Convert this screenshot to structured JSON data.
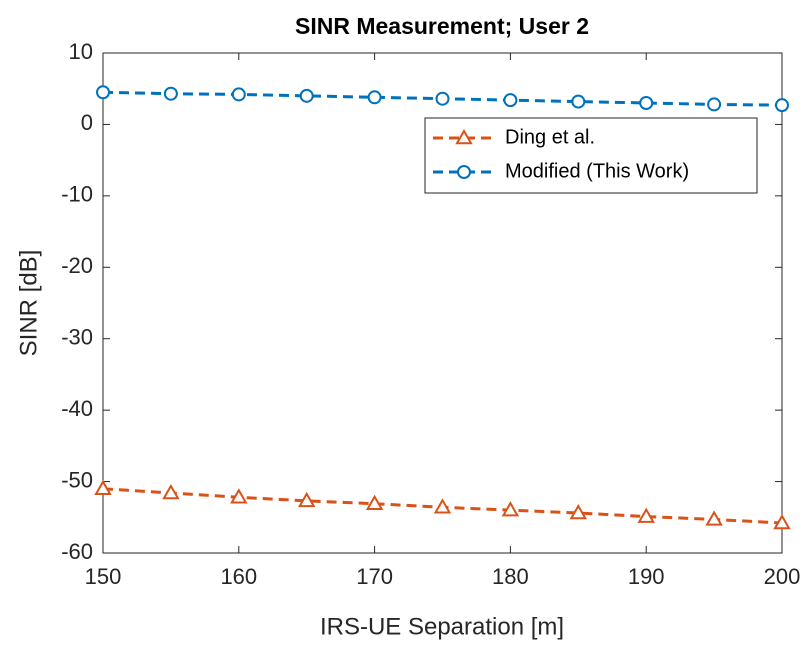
{
  "chart_data": {
    "type": "line",
    "title": "SINR Measurement; User 2",
    "xlabel": "IRS-UE Separation [m]",
    "ylabel": "SINR [dB]",
    "x": [
      150,
      155,
      160,
      165,
      170,
      175,
      180,
      185,
      190,
      195,
      200
    ],
    "series": [
      {
        "name": "Ding et al.",
        "color": "#d95319",
        "marker": "triangle",
        "values": [
          -51.0,
          -51.6,
          -52.2,
          -52.7,
          -53.1,
          -53.6,
          -54.0,
          -54.4,
          -54.9,
          -55.3,
          -55.8
        ]
      },
      {
        "name": "Modified (This Work)",
        "color": "#0072bd",
        "marker": "circle",
        "values": [
          4.5,
          4.3,
          4.2,
          4.0,
          3.8,
          3.6,
          3.4,
          3.2,
          3.0,
          2.8,
          2.7
        ]
      }
    ],
    "xlim": [
      150,
      200
    ],
    "xticks": [
      150,
      160,
      170,
      180,
      190,
      200
    ],
    "ylim": [
      -60,
      10
    ],
    "yticks": [
      -60,
      -50,
      -40,
      -30,
      -20,
      -10,
      0,
      10
    ],
    "legend": "northeast",
    "grid": false
  }
}
